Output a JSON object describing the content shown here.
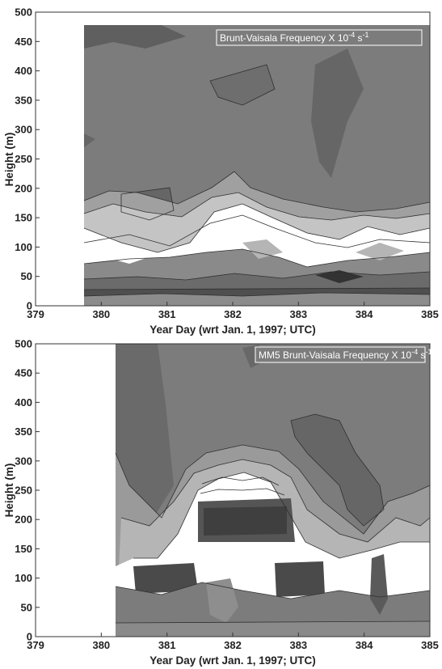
{
  "chart_data": [
    {
      "type": "heatmap",
      "subtype": "filled-contour",
      "title": "Brunt-Vaisala Frequency X 10",
      "title_sup1": "-4",
      "title_mid": " s",
      "title_sup2": "-1",
      "xlabel": "Year Day (wrt Jan. 1, 1997; UTC)",
      "ylabel": "Height (m)",
      "xlim": [
        379,
        385
      ],
      "ylim": [
        0,
        500
      ],
      "xticks": [
        "379",
        "380",
        "381",
        "382",
        "383",
        "384",
        "385"
      ],
      "yticks": [
        "0",
        "50",
        "100",
        "150",
        "200",
        "250",
        "300",
        "350",
        "400",
        "450",
        "500"
      ],
      "data_x_range": [
        379.5,
        385
      ],
      "data_y_range": [
        0,
        475
      ],
      "colormap": "gray",
      "colors": {
        "background": "#7c7c7c",
        "darker": "#5f5f5f",
        "light": "#c4c4c4",
        "lightest": "#ffffff"
      }
    },
    {
      "type": "heatmap",
      "subtype": "filled-contour",
      "title": "MM5 Brunt-Vaisala Frequency X 10",
      "title_sup1": "-4",
      "title_mid": " s",
      "title_sup2": "-1",
      "xlabel": "Year Day (wrt Jan. 1, 1997; UTC)",
      "ylabel": "Height (m)",
      "xlim": [
        379,
        385
      ],
      "ylim": [
        0,
        500
      ],
      "xticks": [
        "379",
        "380",
        "381",
        "382",
        "383",
        "384",
        "385"
      ],
      "yticks": [
        "0",
        "50",
        "100",
        "150",
        "200",
        "250",
        "300",
        "350",
        "400",
        "450",
        "500"
      ],
      "data_x_range": [
        380,
        385
      ],
      "data_y_range": [
        0,
        500
      ],
      "colormap": "gray",
      "colors": {
        "background": "#7c7c7c",
        "darker": "#5f5f5f",
        "light": "#c4c4c4",
        "lightest": "#ffffff"
      }
    }
  ]
}
